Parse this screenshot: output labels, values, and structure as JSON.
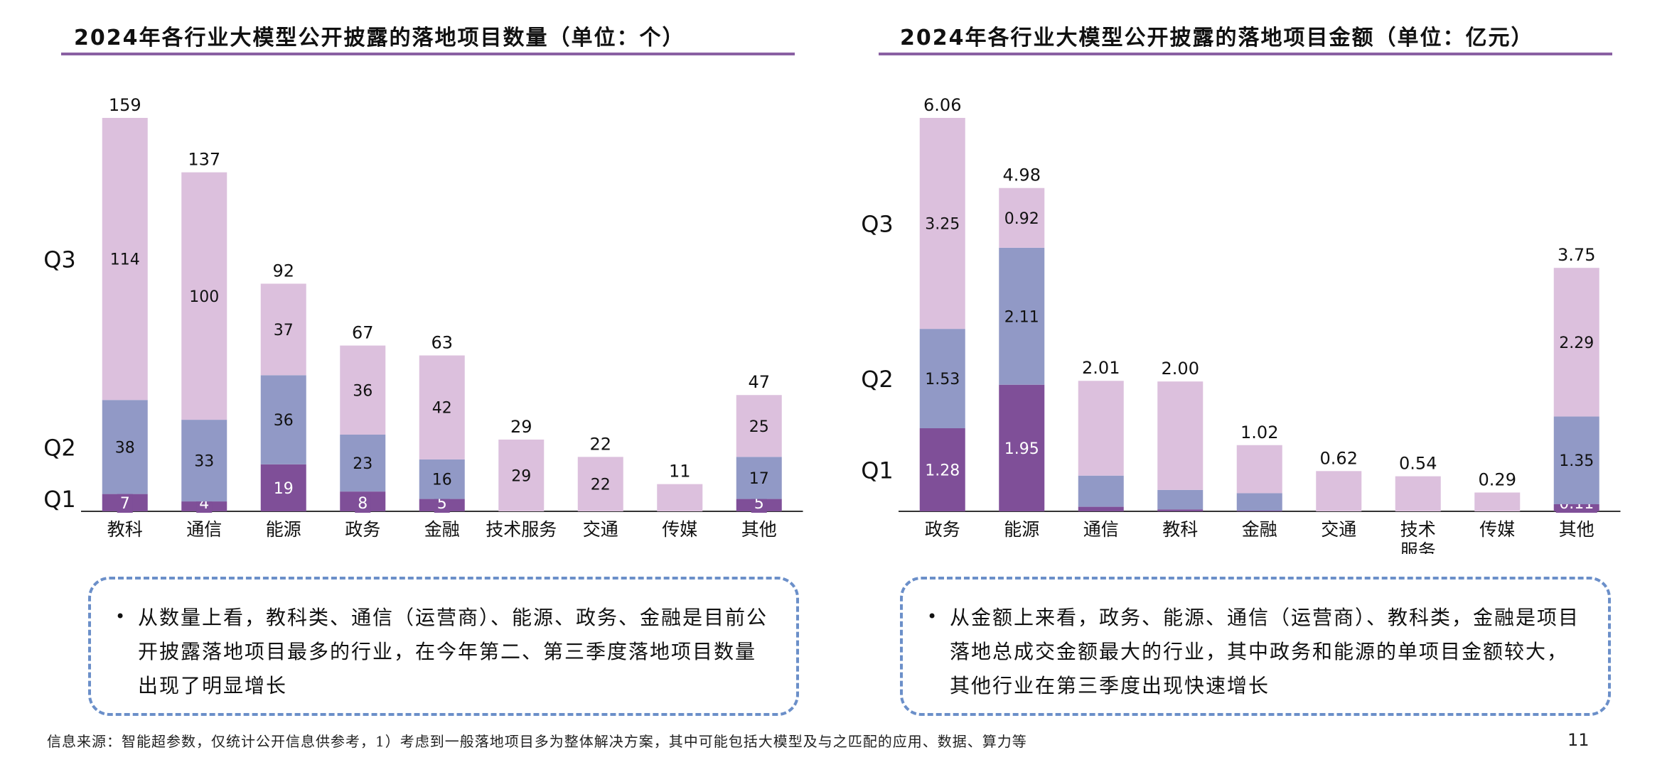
{
  "colors": {
    "q1": "#7f4f98",
    "q2": "#9199c6",
    "q3": "#dcc0dd",
    "title_rule": "#8a60a3",
    "note_border": "#6b8fc9"
  },
  "chart_data": [
    {
      "type": "bar",
      "stacked": true,
      "title": "2024年各行业大模型公开披露的落地项目数量（单位：个）",
      "categories": [
        "教科",
        "通信",
        "能源",
        "政务",
        "金融",
        "技术服务",
        "交通",
        "传媒",
        "其他"
      ],
      "series": [
        {
          "name": "Q1",
          "values": [
            7,
            4,
            19,
            8,
            5,
            0,
            0,
            0,
            5
          ],
          "labels": [
            "7",
            "4",
            "19",
            "8",
            "5",
            "",
            "",
            "",
            "5"
          ]
        },
        {
          "name": "Q2",
          "values": [
            38,
            33,
            36,
            23,
            16,
            0,
            0,
            0,
            17
          ],
          "labels": [
            "38",
            "33",
            "36",
            "23",
            "16",
            "",
            "",
            "",
            "17"
          ]
        },
        {
          "name": "Q3",
          "values": [
            114,
            100,
            37,
            36,
            42,
            29,
            22,
            11,
            25
          ],
          "labels": [
            "114",
            "100",
            "37",
            "36",
            "42",
            "29",
            "22",
            "",
            "25"
          ]
        }
      ],
      "totals": [
        "159",
        "137",
        "92",
        "67",
        "63",
        "29",
        "22",
        "11",
        "47"
      ],
      "ylim": [
        0,
        159
      ],
      "grid": false,
      "legend": "quarter labels on left side"
    },
    {
      "type": "bar",
      "stacked": true,
      "title": "2024年各行业大模型公开披露的落地项目金额（单位：亿元）",
      "categories": [
        "政务",
        "能源",
        "通信",
        "教科",
        "金融",
        "交通",
        "技术服务",
        "传媒",
        "其他"
      ],
      "series": [
        {
          "name": "Q1",
          "values": [
            1.28,
            1.95,
            0.07,
            0.03,
            0.01,
            0,
            0,
            0,
            0.11
          ],
          "labels": [
            "1.28",
            "1.95",
            "",
            "",
            "",
            "",
            "",
            "",
            "0.11"
          ]
        },
        {
          "name": "Q2",
          "values": [
            1.53,
            2.11,
            0.48,
            0.3,
            0.27,
            0,
            0,
            0,
            1.35
          ],
          "labels": [
            "1.53",
            "2.11",
            "",
            "",
            "",
            "",
            "",
            "",
            "1.35"
          ]
        },
        {
          "name": "Q3",
          "values": [
            3.25,
            0.92,
            1.46,
            1.67,
            0.74,
            0.62,
            0.54,
            0.29,
            2.29
          ],
          "labels": [
            "3.25",
            "0.92",
            "",
            "",
            "",
            "",
            "",
            "",
            "2.29"
          ]
        }
      ],
      "totals": [
        "6.06",
        "4.98",
        "2.01",
        "2.00",
        "1.02",
        "0.62",
        "0.54",
        "0.29",
        "3.75"
      ],
      "ylim": [
        0,
        6.06
      ],
      "grid": false,
      "legend": "quarter labels on left side"
    }
  ],
  "notes": [
    "从数量上看，教科类、通信（运营商）、能源、政务、金融是目前公开披露落地项目最多的行业，在今年第二、第三季度落地项目数量出现了明显增长",
    "从金额上来看，政务、能源、通信（运营商）、教科类，金融是项目落地总成交金额最大的行业，其中政务和能源的单项目金额较大，其他行业在第三季度出现快速增长"
  ],
  "bullet": "•",
  "footer": {
    "source": "信息来源：智能超参数，仅统计公开信息供参考，1）考虑到一般落地项目多为整体解决方案，其中可能包括大模型及与之匹配的应用、数据、算力等",
    "page_number": "11"
  }
}
